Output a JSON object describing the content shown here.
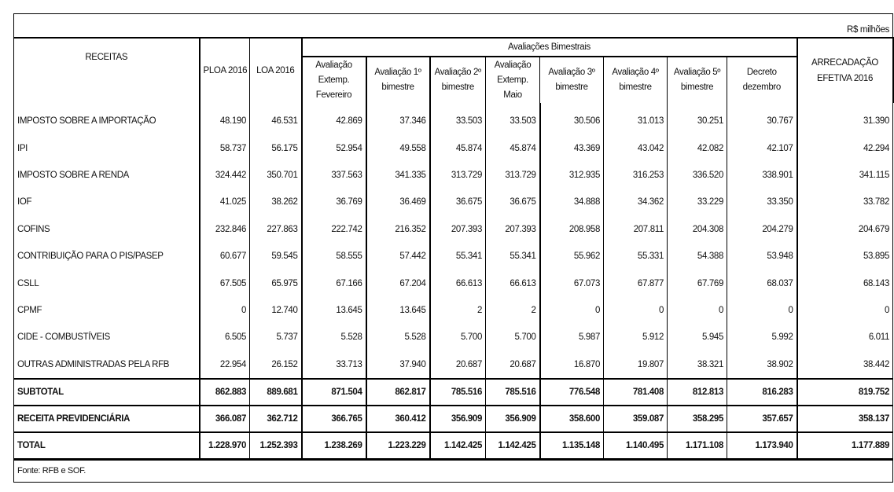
{
  "unit_label": "R$ milhões",
  "headers": {
    "receitas": "RECEITAS",
    "ploa": "PLOA 2016",
    "loa": "LOA 2016",
    "group": "Avaliações Bimestrais",
    "group_cols": [
      "Avaliação Extemp. Fevereiro",
      "Avaliação 1º bimestre",
      "Avaliação 2º bimestre",
      "Avaliação Extemp. Maio",
      "Avaliação 3º bimestre",
      "Avaliação 4º bimestre",
      "Avaliação 5º bimestre",
      "Decreto dezembro"
    ],
    "arrecadacao": "ARRECADAÇÃO EFETIVA 2016"
  },
  "rows": [
    {
      "label": "IMPOSTO SOBRE A IMPORTAÇÃO",
      "values": [
        "48.190",
        "46.531",
        "42.869",
        "37.346",
        "33.503",
        "33.503",
        "30.506",
        "31.013",
        "30.251",
        "30.767",
        "31.390"
      ]
    },
    {
      "label": "IPI",
      "values": [
        "58.737",
        "56.175",
        "52.954",
        "49.558",
        "45.874",
        "45.874",
        "43.369",
        "43.042",
        "42.082",
        "42.107",
        "42.294"
      ]
    },
    {
      "label": "IMPOSTO SOBRE A RENDA",
      "values": [
        "324.442",
        "350.701",
        "337.563",
        "341.335",
        "313.729",
        "313.729",
        "312.935",
        "316.253",
        "336.520",
        "338.901",
        "341.115"
      ]
    },
    {
      "label": "IOF",
      "values": [
        "41.025",
        "38.262",
        "36.769",
        "36.469",
        "36.675",
        "36.675",
        "34.888",
        "34.362",
        "33.229",
        "33.350",
        "33.782"
      ]
    },
    {
      "label": "COFINS",
      "values": [
        "232.846",
        "227.863",
        "222.742",
        "216.352",
        "207.393",
        "207.393",
        "208.958",
        "207.811",
        "204.308",
        "204.279",
        "204.679"
      ]
    },
    {
      "label": "CONTRIBUIÇÃO PARA O PIS/PASEP",
      "values": [
        "60.677",
        "59.545",
        "58.555",
        "57.442",
        "55.341",
        "55.341",
        "55.962",
        "55.331",
        "54.388",
        "53.948",
        "53.895"
      ]
    },
    {
      "label": "CSLL",
      "values": [
        "67.505",
        "65.975",
        "67.166",
        "67.204",
        "66.613",
        "66.613",
        "67.073",
        "67.877",
        "67.769",
        "68.037",
        "68.143"
      ]
    },
    {
      "label": "CPMF",
      "values": [
        "0",
        "12.740",
        "13.645",
        "13.645",
        "2",
        "2",
        "0",
        "0",
        "0",
        "0",
        "0"
      ]
    },
    {
      "label": "CIDE - COMBUSTÍVEIS",
      "values": [
        "6.505",
        "5.737",
        "5.528",
        "5.528",
        "5.700",
        "5.700",
        "5.987",
        "5.912",
        "5.945",
        "5.992",
        "6.011"
      ]
    },
    {
      "label": "OUTRAS ADMINISTRADAS PELA RFB",
      "values": [
        "22.954",
        "26.152",
        "33.713",
        "37.940",
        "20.687",
        "20.687",
        "16.870",
        "19.807",
        "38.321",
        "38.902",
        "38.442"
      ]
    }
  ],
  "totals": [
    {
      "label": "SUBTOTAL",
      "values": [
        "862.883",
        "889.681",
        "871.504",
        "862.817",
        "785.516",
        "785.516",
        "776.548",
        "781.408",
        "812.813",
        "816.283",
        "819.752"
      ]
    },
    {
      "label": "RECEITA PREVIDENCIÁRIA",
      "values": [
        "366.087",
        "362.712",
        "366.765",
        "360.412",
        "356.909",
        "356.909",
        "358.600",
        "359.087",
        "358.295",
        "357.657",
        "358.137"
      ]
    },
    {
      "label": "TOTAL",
      "values": [
        "1.228.970",
        "1.252.393",
        "1.238.269",
        "1.223.229",
        "1.142.425",
        "1.142.425",
        "1.135.148",
        "1.140.495",
        "1.171.108",
        "1.173.940",
        "1.177.889"
      ]
    }
  ],
  "source": "Fonte: RFB e SOF."
}
